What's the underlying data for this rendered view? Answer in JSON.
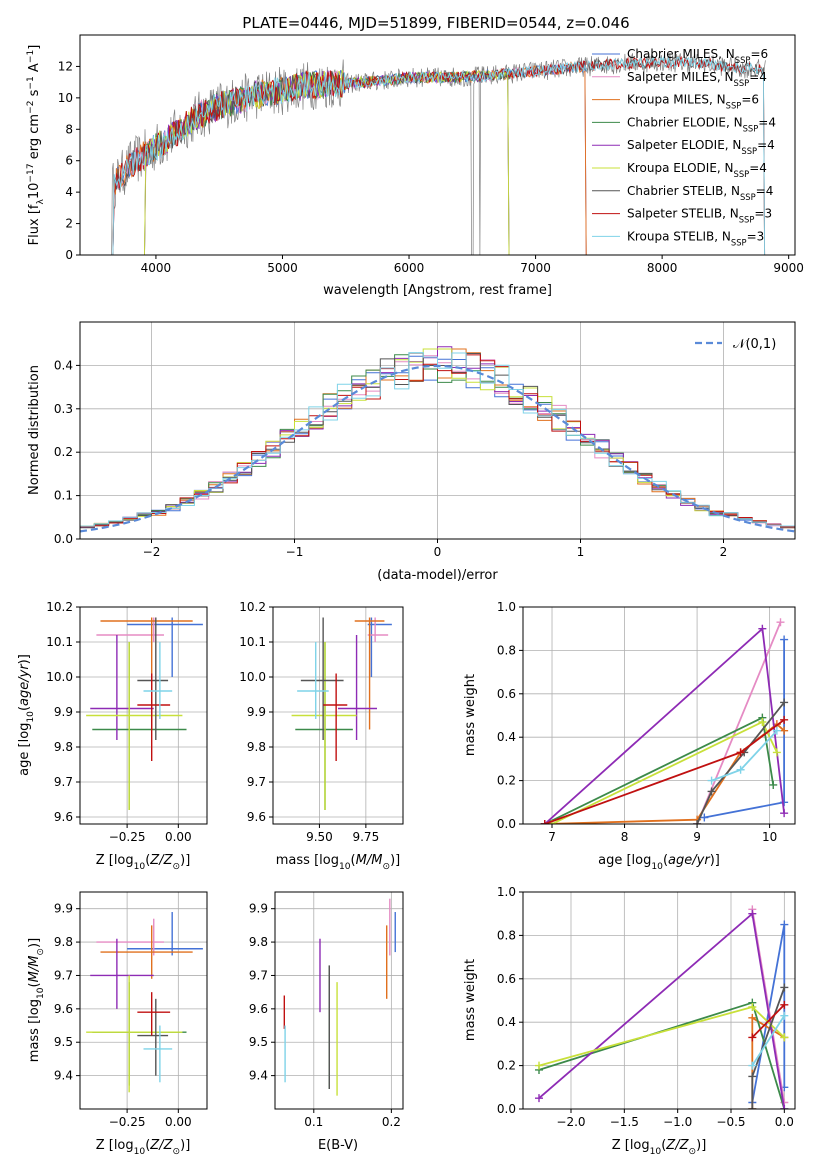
{
  "figure": {
    "title": "PLATE=0446, MJD=51899, FIBERID=0544, z=0.046"
  },
  "colors": {
    "Chabrier MILES": "#4472d6",
    "Salpeter MILES": "#e58bc4",
    "Kroupa MILES": "#e0701e",
    "Chabrier ELODIE": "#3c8a4a",
    "Salpeter ELODIE": "#8e2bb5",
    "Kroupa ELODIE": "#c8e03a",
    "Chabrier STELIB": "#555555",
    "Salpeter STELIB": "#c01010",
    "Kroupa STELIB": "#7fd3e8",
    "data": "#808080",
    "normal_curve": "#5a8ad8"
  },
  "chart_data": [
    {
      "id": "spectrum",
      "type": "line",
      "xlabel": "wavelength [Angstrom, rest frame]",
      "ylabel": "Flux [f_λ 10^-17 erg cm^-2 s^-1 A^-1]",
      "xlim": [
        3400,
        9050
      ],
      "ylim": [
        0,
        14
      ],
      "xticks": [
        4000,
        5000,
        6000,
        7000,
        8000,
        9000
      ],
      "yticks": [
        0,
        2,
        4,
        6,
        8,
        10,
        12
      ],
      "legend_position": "top-right",
      "legend": [
        {
          "name": "Chabrier MILES",
          "nssp": "6"
        },
        {
          "name": "Salpeter MILES",
          "nssp": "4"
        },
        {
          "name": "Kroupa MILES",
          "nssp": "6"
        },
        {
          "name": "Chabrier ELODIE",
          "nssp": "4"
        },
        {
          "name": "Salpeter ELODIE",
          "nssp": "4"
        },
        {
          "name": "Kroupa ELODIE",
          "nssp": "4"
        },
        {
          "name": "Chabrier STELIB",
          "nssp": "4"
        },
        {
          "name": "Salpeter STELIB",
          "nssp": "3"
        },
        {
          "name": "Kroupa STELIB",
          "nssp": "3"
        }
      ],
      "continuum": {
        "x": [
          3650,
          3800,
          3950,
          4100,
          4300,
          4500,
          4800,
          5000,
          5200,
          5500,
          5800,
          6000,
          6300,
          6600,
          7000,
          7400,
          7700,
          8000,
          8300,
          8600,
          8820
        ],
        "y": [
          4.3,
          5.8,
          6.6,
          7.4,
          8.7,
          9.5,
          10.2,
          10.5,
          10.8,
          10.9,
          11.1,
          11.3,
          11.3,
          11.4,
          11.7,
          12.0,
          12.2,
          12.3,
          12.2,
          11.9,
          11.8
        ]
      },
      "model_ranges": {
        "MILES": [
          3650,
          7410
        ],
        "ELODIE": [
          3900,
          6800
        ],
        "STELIB": [
          3650,
          8820
        ]
      }
    },
    {
      "id": "residuals",
      "type": "histogram",
      "xlabel": "(data-model)/error",
      "ylabel": "Normed distribution",
      "xlim": [
        -2.5,
        2.5
      ],
      "ylim": [
        0,
        0.5
      ],
      "xticks": [
        -2,
        -1,
        0,
        1,
        2
      ],
      "yticks": [
        0.0,
        0.1,
        0.2,
        0.3,
        0.4
      ],
      "grid": true,
      "bin_width": 0.1,
      "bin_start": -2.5,
      "legend_label": "𝒩(0,1)",
      "legend_position": "top-right"
    },
    {
      "id": "age-vs-Z",
      "type": "errorbar",
      "xlabel": "Z [log10(Z/Z☉)]",
      "ylabel": "age [log10(age/yr)]",
      "xlim": [
        -0.48,
        0.14
      ],
      "ylim": [
        9.58,
        10.2
      ],
      "xticks": [
        -0.25,
        0.0
      ],
      "yticks": [
        9.6,
        9.7,
        9.8,
        9.9,
        10.0,
        10.1,
        10.2
      ],
      "grid": true
    },
    {
      "id": "age-vs-mass",
      "type": "errorbar",
      "xlabel": "mass [log10(M/M☉)]",
      "xlim": [
        9.25,
        9.95
      ],
      "ylim": [
        9.58,
        10.2
      ],
      "xticks": [
        9.5,
        9.75
      ],
      "yticks": [
        9.6,
        9.7,
        9.8,
        9.9,
        10.0,
        10.1,
        10.2
      ],
      "grid": true
    },
    {
      "id": "massweight-vs-age",
      "type": "line",
      "xlabel": "age [log10(age/yr)]",
      "ylabel": "mass weight",
      "xlim": [
        6.6,
        10.35
      ],
      "ylim": [
        0,
        1.0
      ],
      "xticks": [
        7,
        8,
        9,
        10
      ],
      "yticks": [
        0.0,
        0.2,
        0.4,
        0.6,
        0.8,
        1.0
      ],
      "grid": true
    },
    {
      "id": "mass-vs-Z",
      "type": "errorbar",
      "xlabel": "Z [log10(Z/Z☉)]",
      "ylabel": "mass [log10(M/M☉)]",
      "xlim": [
        -0.48,
        0.14
      ],
      "ylim": [
        9.3,
        9.95
      ],
      "xticks": [
        -0.25,
        0.0
      ],
      "yticks": [
        9.4,
        9.5,
        9.6,
        9.7,
        9.8,
        9.9
      ],
      "grid": true
    },
    {
      "id": "mass-vs-ebv",
      "type": "errorbar",
      "xlabel": "E(B-V)",
      "xlim": [
        0.05,
        0.215
      ],
      "ylim": [
        9.3,
        9.95
      ],
      "xticks": [
        0.1,
        0.2
      ],
      "yticks": [
        9.4,
        9.5,
        9.6,
        9.7,
        9.8,
        9.9
      ],
      "grid": true
    },
    {
      "id": "massweight-vs-Z",
      "type": "line",
      "xlabel": "Z [log10(Z/Z☉)]",
      "ylabel": "mass weight",
      "xlim": [
        -2.45,
        0.1
      ],
      "ylim": [
        0,
        1.0
      ],
      "xticks": [
        -2.0,
        -1.5,
        -1.0,
        -0.5,
        0.0
      ],
      "yticks": [
        0.0,
        0.2,
        0.4,
        0.6,
        0.8,
        1.0
      ],
      "grid": true
    }
  ],
  "fits": [
    {
      "name": "Chabrier MILES",
      "Z": -0.03,
      "Zlo": -0.25,
      "Zhi": 0.12,
      "age": 10.15,
      "ageLo": 10.0,
      "ageHi": 10.17,
      "mass": 9.78,
      "massLo": 9.76,
      "massHi": 9.89,
      "ebv": 0.205,
      "ebvLo": 9.77,
      "ebvHi": 9.89,
      "ages": [
        9.1,
        10.2,
        10.2
      ],
      "w_age": [
        0.03,
        0.1,
        0.85
      ],
      "Zs": [
        -0.3,
        0.0,
        0.0
      ],
      "w_Z": [
        0.03,
        0.85,
        0.1
      ]
    },
    {
      "name": "Salpeter MILES",
      "Z": -0.12,
      "Zlo": -0.4,
      "Zhi": -0.07,
      "age": 10.12,
      "ageLo": 10.1,
      "ageHi": 10.17,
      "mass": 9.8,
      "massLo": 9.76,
      "massHi": 9.87,
      "ebv": 0.198,
      "ebvLo": 9.76,
      "ebvHi": 9.93,
      "ages": [
        9.0,
        10.15
      ],
      "w_age": [
        0.0,
        0.93
      ],
      "Zs": [
        -0.3,
        0.0
      ],
      "w_Z": [
        0.92,
        0.03
      ]
    },
    {
      "name": "Kroupa MILES",
      "Z": -0.13,
      "Zlo": -0.38,
      "Zhi": 0.07,
      "age": 10.16,
      "ageLo": 9.85,
      "ageHi": 10.17,
      "mass": 9.77,
      "massLo": 9.69,
      "massHi": 9.85,
      "ebv": 0.194,
      "ebvLo": 9.63,
      "ebvHi": 9.85,
      "ages": [
        6.9,
        9.0,
        9.6,
        10.1,
        10.2
      ],
      "w_age": [
        0.0,
        0.02,
        0.33,
        0.46,
        0.43
      ],
      "Zs": [
        -0.3,
        -0.3,
        0.0
      ],
      "w_Z": [
        0.0,
        0.42,
        0.33
      ]
    },
    {
      "name": "Chabrier ELODIE",
      "Z": -0.24,
      "Zlo": -0.42,
      "Zhi": 0.04,
      "age": 9.85,
      "ageLo": 9.62,
      "ageHi": 10.1,
      "mass": 9.53,
      "massLo": 9.37,
      "massHi": 9.68,
      "ebv": 0.12,
      "ebvLo": 9.36,
      "ebvHi": 9.73,
      "ages": [
        6.9,
        9.9,
        10.05
      ],
      "w_age": [
        0.0,
        0.49,
        0.18
      ],
      "Zs": [
        -2.3,
        -0.3,
        0.0
      ],
      "w_Z": [
        0.18,
        0.49,
        0.0
      ]
    },
    {
      "name": "Salpeter ELODIE",
      "Z": -0.3,
      "Zlo": -0.43,
      "Zhi": -0.12,
      "age": 9.91,
      "ageLo": 9.82,
      "ageHi": 10.12,
      "mass": 9.7,
      "massLo": 9.6,
      "massHi": 9.81,
      "ebv": 0.108,
      "ebvLo": 9.59,
      "ebvHi": 9.81,
      "ages": [
        6.9,
        9.9,
        10.2
      ],
      "w_age": [
        0.0,
        0.9,
        0.05
      ],
      "Zs": [
        -2.3,
        -0.3,
        0.0
      ],
      "w_Z": [
        0.05,
        0.9,
        0.0
      ]
    },
    {
      "name": "Kroupa ELODIE",
      "Z": -0.24,
      "Zlo": -0.45,
      "Zhi": 0.02,
      "age": 9.89,
      "ageLo": 9.62,
      "ageHi": 10.1,
      "mass": 9.53,
      "massLo": 9.35,
      "massHi": 9.7,
      "ebv": 0.13,
      "ebvLo": 9.34,
      "ebvHi": 9.68,
      "ages": [
        7.0,
        9.9,
        10.1
      ],
      "w_age": [
        0.0,
        0.47,
        0.33
      ],
      "Zs": [
        -2.3,
        -0.3,
        0.0
      ],
      "w_Z": [
        0.2,
        0.47,
        0.33
      ]
    },
    {
      "name": "Chabrier STELIB",
      "Z": -0.11,
      "Zlo": -0.2,
      "Zhi": -0.05,
      "age": 9.99,
      "ageLo": 9.82,
      "ageHi": 10.17,
      "mass": 9.52,
      "massLo": 9.4,
      "massHi": 9.63,
      "ebv": 0.12,
      "ebvLo": 9.36,
      "ebvHi": 9.73,
      "ages": [
        9.0,
        9.2,
        9.65,
        10.2
      ],
      "w_age": [
        0.0,
        0.15,
        0.33,
        0.56
      ],
      "Zs": [
        -0.3,
        -0.3,
        0.0
      ],
      "w_Z": [
        0.0,
        0.15,
        0.56
      ]
    },
    {
      "name": "Salpeter STELIB",
      "Z": -0.13,
      "Zlo": -0.2,
      "Zhi": -0.04,
      "age": 9.92,
      "ageLo": 9.76,
      "ageHi": 10.01,
      "mass": 9.59,
      "massLo": 9.52,
      "massHi": 9.65,
      "ebv": 0.062,
      "ebvLo": 9.54,
      "ebvHi": 9.64,
      "ages": [
        6.9,
        9.6,
        10.2
      ],
      "w_age": [
        0.0,
        0.33,
        0.48
      ],
      "Zs": [
        -0.3,
        0.0
      ],
      "w_Z": [
        0.33,
        0.48
      ]
    },
    {
      "name": "Kroupa STELIB",
      "Z": -0.09,
      "Zlo": -0.17,
      "Zhi": -0.03,
      "age": 9.96,
      "ageLo": 9.88,
      "ageHi": 10.1,
      "mass": 9.48,
      "massLo": 9.38,
      "massHi": 9.55,
      "ebv": 0.063,
      "ebvLo": 9.38,
      "ebvHi": 9.55,
      "ages": [
        9.2,
        9.6,
        10.1
      ],
      "w_age": [
        0.2,
        0.25,
        0.43
      ],
      "Zs": [
        -0.3,
        0.0
      ],
      "w_Z": [
        0.2,
        0.43
      ]
    }
  ]
}
